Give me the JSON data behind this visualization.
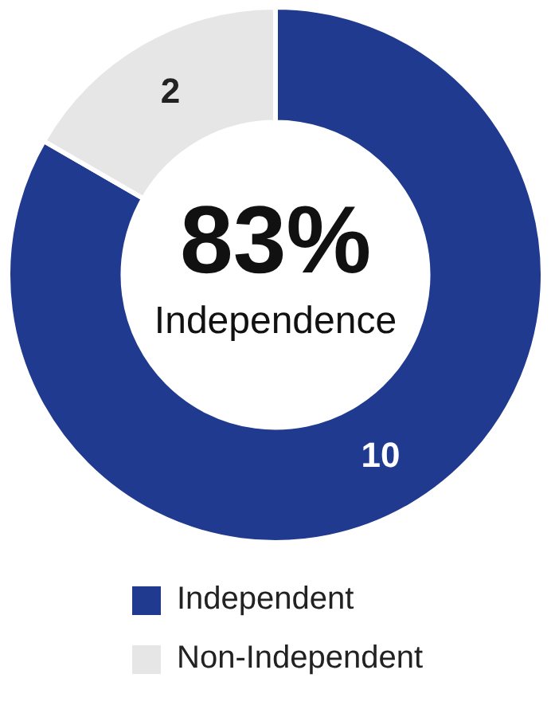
{
  "chart_data": {
    "type": "donut",
    "categories": [
      "Independent",
      "Non-Independent"
    ],
    "values": [
      10,
      2
    ],
    "colors": [
      "#1f3a8f",
      "#e6e6e6"
    ],
    "annotations": [
      "83%",
      "Independence"
    ],
    "data_labels": true,
    "legend": "bottom"
  }
}
